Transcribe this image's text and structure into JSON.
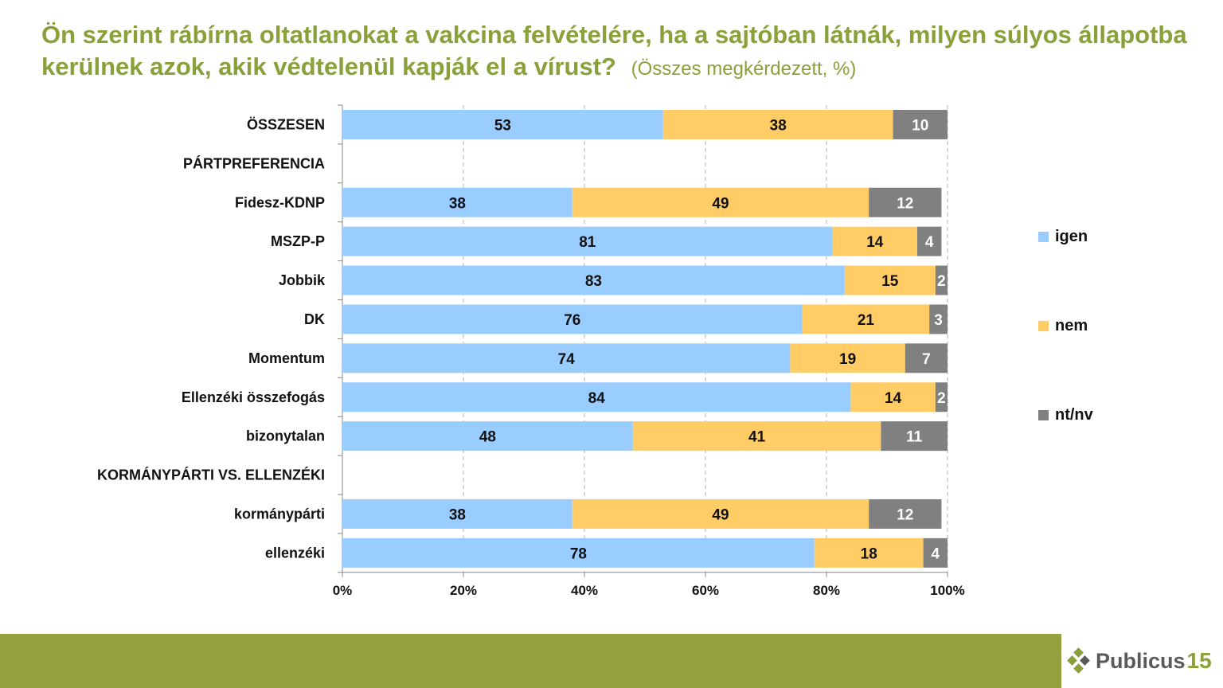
{
  "title": {
    "main": "Ön szerint rábírna oltatlanokat a vakcina felvételére, ha a sajtóban látnák, milyen súlyos állapotba kerülnek azok, akik védtelenül kapják el a vírust?",
    "subtitle": "(Összes megkérdezett, %)"
  },
  "logo": {
    "text": "Publicus",
    "number": "15"
  },
  "colors": {
    "igen": "#99ccff",
    "nem": "#ffcc66",
    "ntnv": "#808080",
    "title": "#8aa03a",
    "footer": "#94a13e"
  },
  "chart_data": {
    "type": "bar",
    "orientation": "horizontal",
    "stacked": "percent",
    "categories": [
      "ÖSSZESEN",
      "PÁRTPREFERENCIA",
      "Fidesz-KDNP",
      "MSZP-P",
      "Jobbik",
      "DK",
      "Momentum",
      "Ellenzéki összefogás",
      "bizonytalan",
      "KORMÁNYPÁRTI VS. ELLENZÉKI",
      "kormánypárti",
      "ellenzéki"
    ],
    "series": [
      {
        "name": "igen",
        "values": [
          53,
          null,
          38,
          81,
          83,
          76,
          74,
          84,
          48,
          null,
          38,
          78
        ]
      },
      {
        "name": "nem",
        "values": [
          38,
          null,
          49,
          14,
          15,
          21,
          19,
          14,
          41,
          null,
          49,
          18
        ]
      },
      {
        "name": "nt/nv",
        "values": [
          10,
          null,
          12,
          4,
          2,
          3,
          7,
          2,
          11,
          null,
          12,
          4
        ]
      }
    ],
    "x_ticks": [
      "0%",
      "20%",
      "40%",
      "60%",
      "80%",
      "100%"
    ],
    "xlim": [
      0,
      100
    ],
    "grid": "vertical dashed",
    "legend_position": "right"
  }
}
